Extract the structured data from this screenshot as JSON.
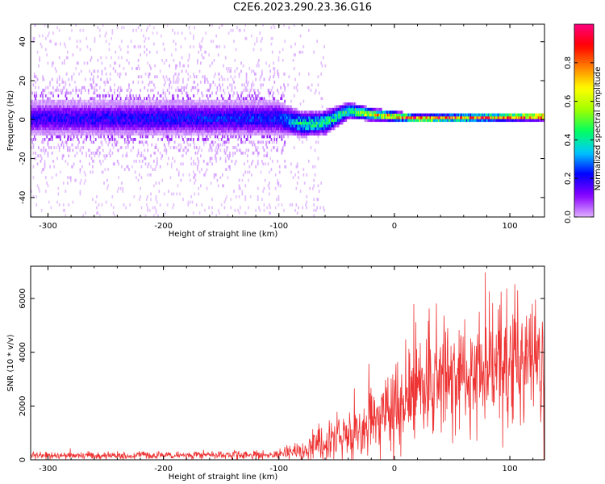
{
  "title": "C2E6.2023.290.23.36.G16",
  "chart_data": [
    {
      "type": "heatmap",
      "xlabel": "Height of straight line (km)",
      "ylabel": "Frequency (Hz)",
      "xlim": [
        -315,
        130
      ],
      "ylim": [
        -50,
        49
      ],
      "xticks": [
        -300,
        -200,
        -100,
        0,
        100
      ],
      "yticks": [
        -40,
        -20,
        0,
        20,
        40
      ],
      "colorbar": {
        "label": "Normalized spectral amplitude",
        "range": [
          0,
          1
        ],
        "ticks": [
          0.0,
          0.2,
          0.4,
          0.6,
          0.8
        ],
        "colormap": [
          "#e0b0ff",
          "#8800ff",
          "#0000ff",
          "#00c8ff",
          "#00ff60",
          "#a0ff00",
          "#ffff00",
          "#ff8000",
          "#ff0000",
          "#ff0080"
        ]
      },
      "signal": {
        "description_points": [
          {
            "x": -315,
            "center": 0,
            "spread": 4,
            "amp": 0.2
          },
          {
            "x": -100,
            "center": 0,
            "spread": 4,
            "amp": 0.25
          },
          {
            "x": -80,
            "center": -3,
            "spread": 3,
            "amp": 0.45
          },
          {
            "x": -60,
            "center": -2,
            "spread": 3,
            "amp": 0.45
          },
          {
            "x": -40,
            "center": 4,
            "spread": 2,
            "amp": 0.5
          },
          {
            "x": -20,
            "center": 2,
            "spread": 1.5,
            "amp": 0.7
          },
          {
            "x": 20,
            "center": 0,
            "spread": 1,
            "amp": 0.9
          },
          {
            "x": 130,
            "center": 1,
            "spread": 1,
            "amp": 0.9
          }
        ]
      }
    },
    {
      "type": "line",
      "xlabel": "Height of straight line (km)",
      "ylabel": "SNR (10 * v/v)",
      "xlim": [
        -315,
        130
      ],
      "ylim": [
        0,
        7200
      ],
      "xticks": [
        -300,
        -200,
        -100,
        0,
        100
      ],
      "yticks": [
        0,
        2000,
        4000,
        6000
      ],
      "color": "#ee3333",
      "envelope": [
        {
          "x": -315,
          "mean": 150,
          "noise": 120
        },
        {
          "x": -100,
          "mean": 180,
          "noise": 150
        },
        {
          "x": -80,
          "mean": 400,
          "noise": 500
        },
        {
          "x": -60,
          "mean": 600,
          "noise": 700
        },
        {
          "x": -40,
          "mean": 900,
          "noise": 900
        },
        {
          "x": -20,
          "mean": 1400,
          "noise": 1400
        },
        {
          "x": 0,
          "mean": 2000,
          "noise": 1700
        },
        {
          "x": 20,
          "mean": 2700,
          "noise": 1900
        },
        {
          "x": 50,
          "mean": 3200,
          "noise": 2100
        },
        {
          "x": 80,
          "mean": 3400,
          "noise": 2100
        },
        {
          "x": 110,
          "mean": 3600,
          "noise": 2200
        },
        {
          "x": 130,
          "mean": 3500,
          "noise": 2200
        }
      ]
    }
  ]
}
